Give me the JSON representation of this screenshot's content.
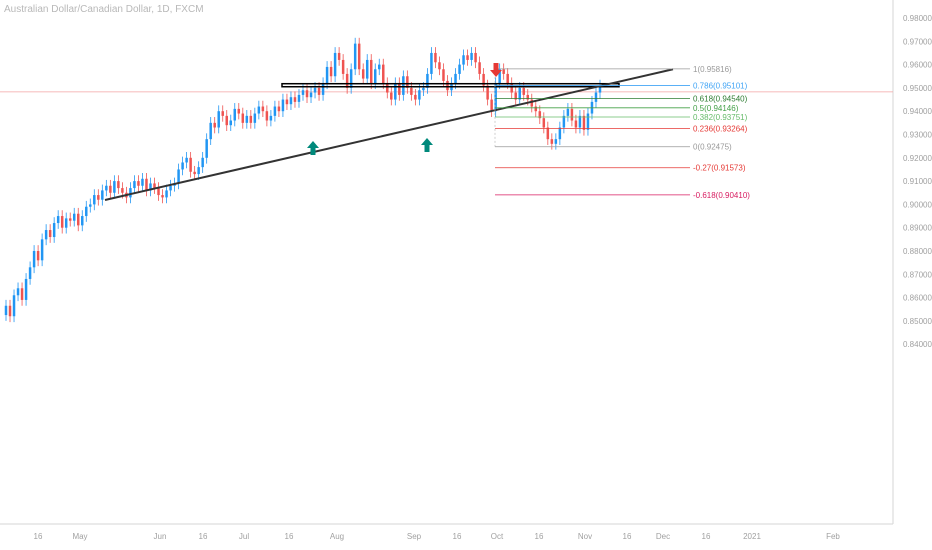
{
  "header": {
    "title": "Australian Dollar/Canadian Dollar, 1D, FXCM"
  },
  "chart_data": {
    "type": "candlestick",
    "title": "Australian Dollar/Canadian Dollar, 1D, FXCM",
    "ylim": [
      0.835,
      0.985
    ],
    "y_ticks": [
      "0.98000",
      "0.97000",
      "0.96000",
      "0.95000",
      "0.94000",
      "0.93000",
      "0.92000",
      "0.91000",
      "0.90000",
      "0.89000",
      "0.88000",
      "0.87000",
      "0.86000",
      "0.85000",
      "0.84000"
    ],
    "x_ticks": [
      "16",
      "May",
      "Jun",
      "16",
      "Jul",
      "16",
      "Aug",
      "Sep",
      "16",
      "Oct",
      "16",
      "Nov",
      "16",
      "Dec",
      "16",
      "2021",
      "Feb"
    ],
    "colors": {
      "up": "#2196f3",
      "down": "#ef5350",
      "trendline": "#333333",
      "box": "#000000",
      "arrow_up": "#00897b",
      "arrow_down": "#e53935"
    },
    "closes": [
      0.8565,
      0.852,
      0.861,
      0.864,
      0.859,
      0.868,
      0.873,
      0.88,
      0.876,
      0.885,
      0.889,
      0.886,
      0.892,
      0.895,
      0.89,
      0.894,
      0.893,
      0.896,
      0.891,
      0.895,
      0.899,
      0.9,
      0.904,
      0.902,
      0.906,
      0.908,
      0.905,
      0.91,
      0.907,
      0.905,
      0.903,
      0.907,
      0.91,
      0.908,
      0.911,
      0.906,
      0.909,
      0.907,
      0.904,
      0.903,
      0.906,
      0.908,
      0.909,
      0.915,
      0.918,
      0.92,
      0.914,
      0.913,
      0.916,
      0.92,
      0.928,
      0.935,
      0.933,
      0.94,
      0.938,
      0.934,
      0.936,
      0.941,
      0.939,
      0.935,
      0.938,
      0.935,
      0.939,
      0.942,
      0.94,
      0.936,
      0.938,
      0.942,
      0.94,
      0.945,
      0.943,
      0.946,
      0.944,
      0.947,
      0.949,
      0.946,
      0.948,
      0.95,
      0.947,
      0.952,
      0.959,
      0.955,
      0.965,
      0.962,
      0.956,
      0.95,
      0.958,
      0.969,
      0.958,
      0.954,
      0.962,
      0.952,
      0.958,
      0.96,
      0.952,
      0.948,
      0.945,
      0.952,
      0.947,
      0.955,
      0.95,
      0.947,
      0.945,
      0.949,
      0.95,
      0.956,
      0.965,
      0.961,
      0.958,
      0.953,
      0.949,
      0.952,
      0.956,
      0.96,
      0.964,
      0.962,
      0.965,
      0.961,
      0.956,
      0.951,
      0.945,
      0.94,
      0.952,
      0.958,
      0.956,
      0.952,
      0.948,
      0.945,
      0.95,
      0.947,
      0.945,
      0.942,
      0.94,
      0.937,
      0.933,
      0.928,
      0.926,
      0.928,
      0.933,
      0.938,
      0.941,
      0.936,
      0.933,
      0.938,
      0.932,
      0.939,
      0.944,
      0.948,
      0.951
    ],
    "support_box": {
      "x_start": "Jul",
      "x_end": "Nov",
      "y": [
        0.9505,
        0.9518
      ]
    },
    "trendline": {
      "from": [
        0.9019,
        "May"
      ],
      "to": [
        0.958,
        "Dec"
      ]
    },
    "arrows": [
      {
        "direction": "up",
        "near": "Jul 16"
      },
      {
        "direction": "up",
        "near": "Sep"
      },
      {
        "direction": "down",
        "near": "Oct"
      }
    ],
    "fibonacci": [
      {
        "label": "1(0.95816)",
        "value": 0.95816,
        "color": "#999999"
      },
      {
        "label": "0.786(0.95101)",
        "value": 0.95101,
        "color": "#42a5f5"
      },
      {
        "label": "0.618(0.94540)",
        "value": 0.9454,
        "color": "#2e7d32"
      },
      {
        "label": "0.5(0.94146)",
        "value": 0.94146,
        "color": "#43a047"
      },
      {
        "label": "0.382(0.93751)",
        "value": 0.93751,
        "color": "#66bb6a"
      },
      {
        "label": "0.236(0.93264)",
        "value": 0.93264,
        "color": "#e53935"
      },
      {
        "label": "0(0.92475)",
        "value": 0.92475,
        "color": "#999999"
      },
      {
        "label": "-0.27(0.91573)",
        "value": 0.91573,
        "color": "#e53935"
      },
      {
        "label": "-0.618(0.90410)",
        "value": 0.9041,
        "color": "#d81b60"
      }
    ],
    "price_line": {
      "value": 0.9483,
      "color": "#f3a3a3"
    }
  }
}
